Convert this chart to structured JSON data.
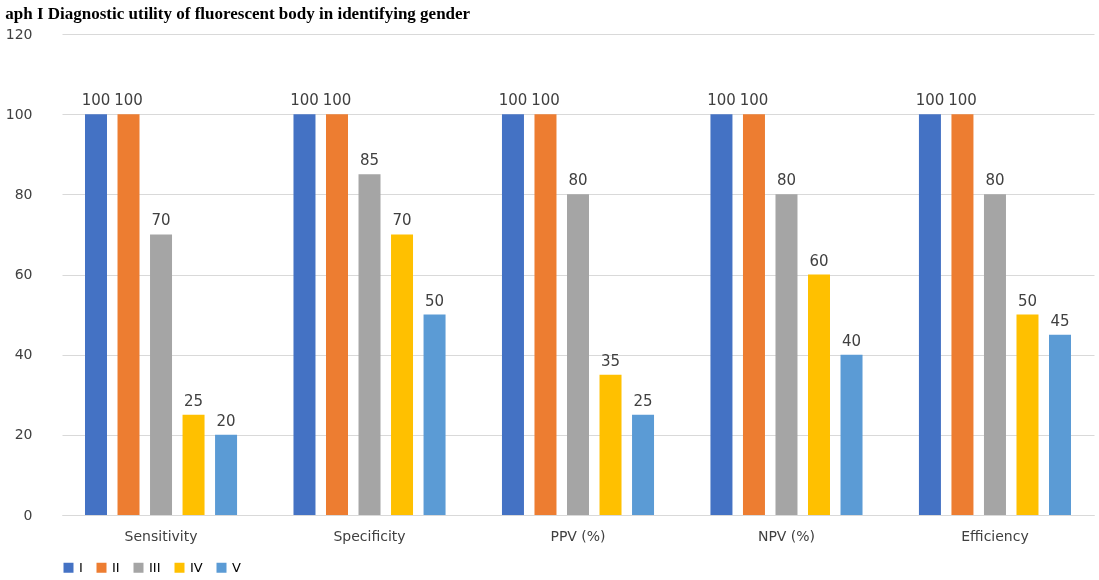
{
  "chart_data": {
    "type": "bar",
    "title": "aph I Diagnostic utility of fluorescent body in identifying gender",
    "categories": [
      "Sensitivity",
      "Specificity",
      "PPV (%)",
      "NPV (%)",
      "Efficiency"
    ],
    "series": [
      {
        "name": "I",
        "color": "#4472c4",
        "values": [
          100,
          100,
          100,
          100,
          100
        ]
      },
      {
        "name": "II",
        "color": "#ed7d31",
        "values": [
          100,
          100,
          100,
          100,
          100
        ]
      },
      {
        "name": "III",
        "color": "#a5a5a5",
        "values": [
          70,
          85,
          80,
          80,
          80
        ]
      },
      {
        "name": "IV",
        "color": "#ffc000",
        "values": [
          25,
          70,
          35,
          60,
          50
        ]
      },
      {
        "name": "V",
        "color": "#5b9bd5",
        "values": [
          20,
          50,
          25,
          40,
          45
        ]
      }
    ],
    "ylim": [
      0,
      120
    ],
    "yticks": [
      0,
      20,
      40,
      60,
      80,
      100,
      120
    ],
    "grid": "y",
    "legend": "bottom",
    "data_labels": true
  }
}
